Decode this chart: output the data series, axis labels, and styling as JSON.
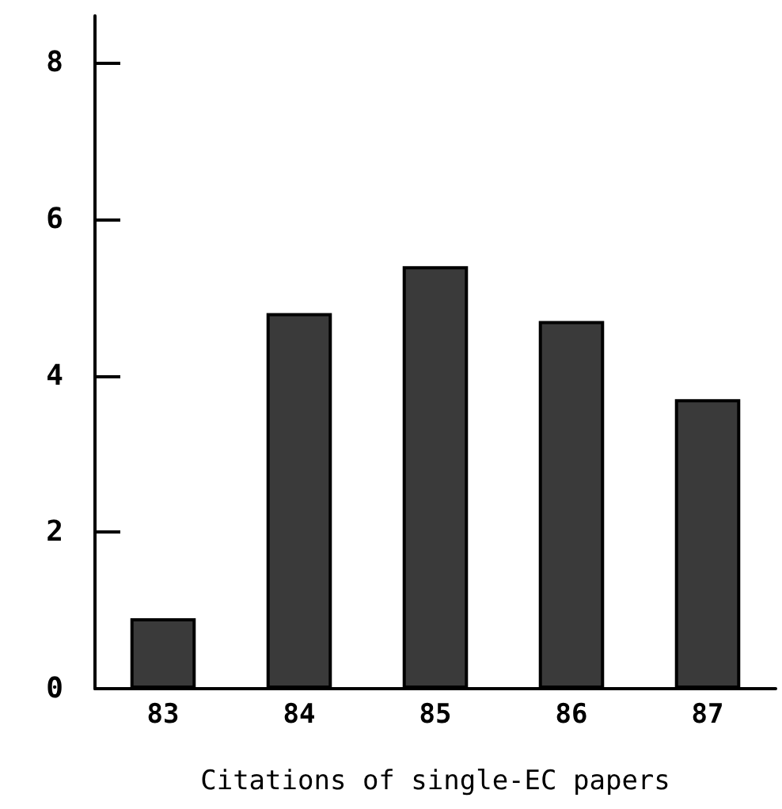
{
  "chart_data": {
    "type": "bar",
    "xlabel": "Citations of single-EC papers",
    "categories": [
      "83",
      "84",
      "85",
      "86",
      "87"
    ],
    "values": [
      0.9,
      4.8,
      5.4,
      4.7,
      3.7
    ],
    "color": "#3a3a3a",
    "ylim": [
      0,
      8.6
    ],
    "yticks": [
      0,
      2,
      4,
      6,
      8
    ],
    "grid": false
  }
}
